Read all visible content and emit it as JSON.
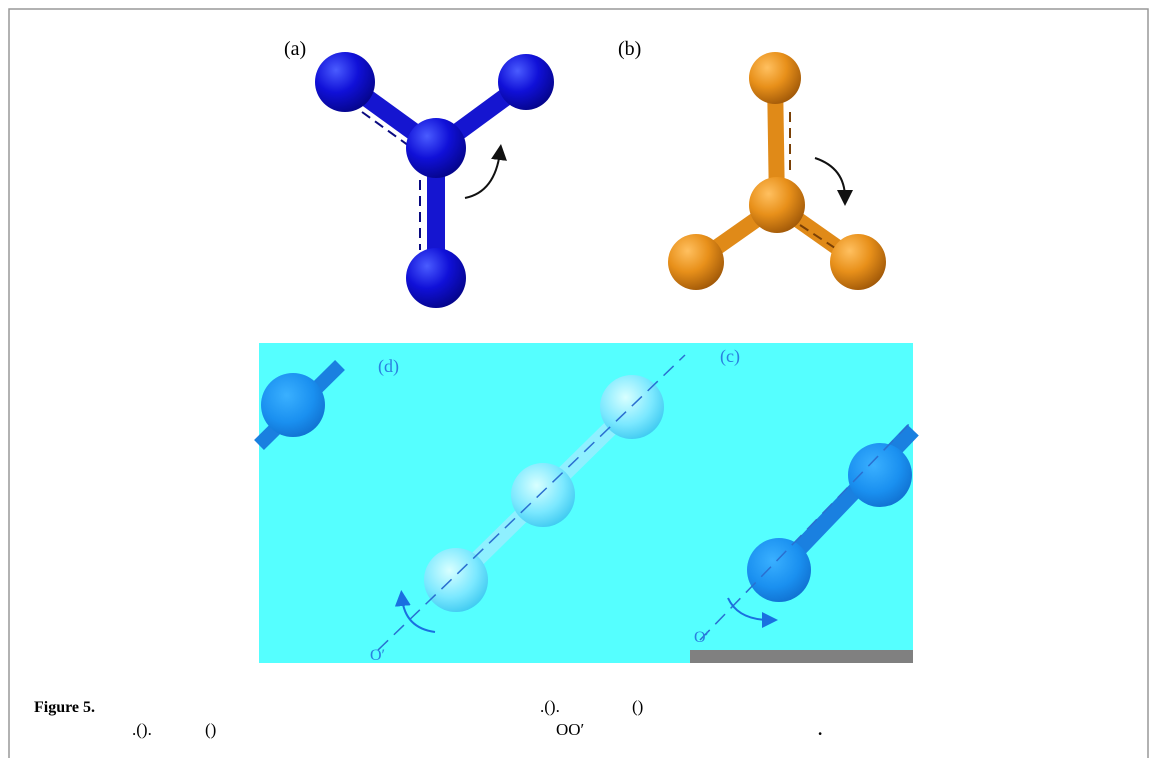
{
  "figure": {
    "panels": [
      {
        "label": "(a)"
      },
      {
        "label": "(b)"
      },
      {
        "label": "(d)",
        "axis_label": "O′"
      },
      {
        "label": "(c)",
        "axis_label": "O′"
      }
    ]
  },
  "caption": {
    "label": "Figure 5.",
    "fragments": [
      ".().",
      "()",
      ".().",
      "()",
      "OO′",
      "."
    ]
  }
}
